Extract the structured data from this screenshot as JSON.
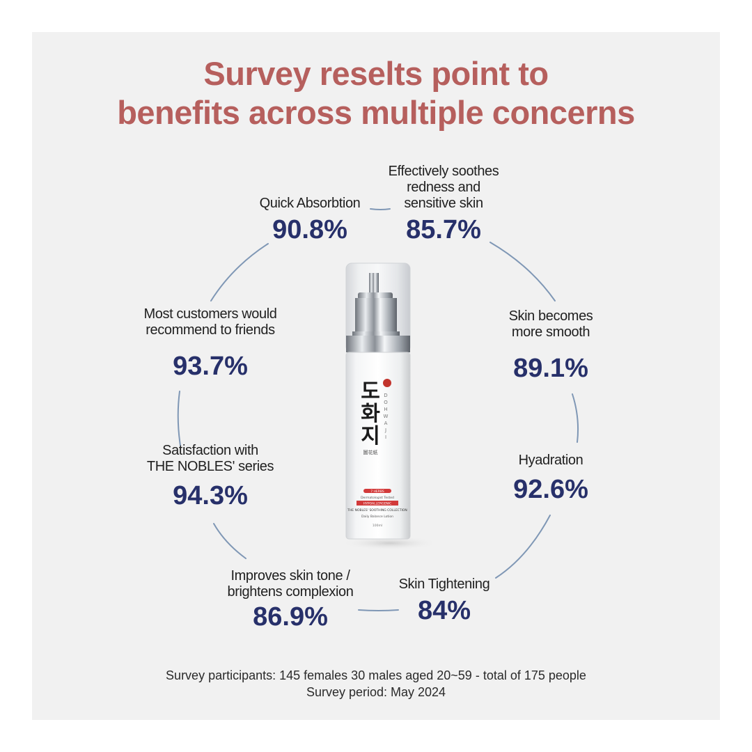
{
  "title": {
    "line1": "Survey reselts point to",
    "line2": "benefits across multiple concerns"
  },
  "stats": [
    {
      "id": "quick-absorbtion",
      "label": [
        "Quick Absorbtion"
      ],
      "percent": "90.8%"
    },
    {
      "id": "soothes-redness",
      "label": [
        "Effectively soothes",
        "redness and",
        "sensitive skin"
      ],
      "percent": "85.7%"
    },
    {
      "id": "recommend",
      "label": [
        "Most customers would",
        "recommend to friends"
      ],
      "percent": "93.7%"
    },
    {
      "id": "smooth",
      "label": [
        "Skin becomes",
        "more smooth"
      ],
      "percent": "89.1%"
    },
    {
      "id": "satisfaction",
      "label": [
        "Satisfaction with",
        "THE NOBLES' series"
      ],
      "percent": "94.3%"
    },
    {
      "id": "hydration",
      "label": [
        "Hyadration"
      ],
      "percent": "92.6%"
    },
    {
      "id": "skin-tone",
      "label": [
        "Improves skin tone /",
        "brightens complexion"
      ],
      "percent": "86.9%"
    },
    {
      "id": "tightening",
      "label": [
        "Skin Tightening"
      ],
      "percent": "84%"
    }
  ],
  "product": {
    "brand_korean": "도화지",
    "brand_roman": "DOHWAJI",
    "brand_hanja": "圖花紙",
    "badge": "7 HERBS",
    "tested": "Dermatologist Tested",
    "hypo": "HYPOALLERGENIC",
    "collection": "THE NOBLES' SOOTHING COLLECTION",
    "name": "Daily Balance Lotion",
    "volume": "100ml"
  },
  "footer": {
    "line1": "Survey participants: 145 females 30 males aged 20~59 - total of 175 people",
    "line2": "Survey period: May 2024"
  },
  "colors": {
    "title": "#b65f5d",
    "percent": "#27306a",
    "ring": "#7f97b5",
    "panel": "#f1f1f1"
  }
}
